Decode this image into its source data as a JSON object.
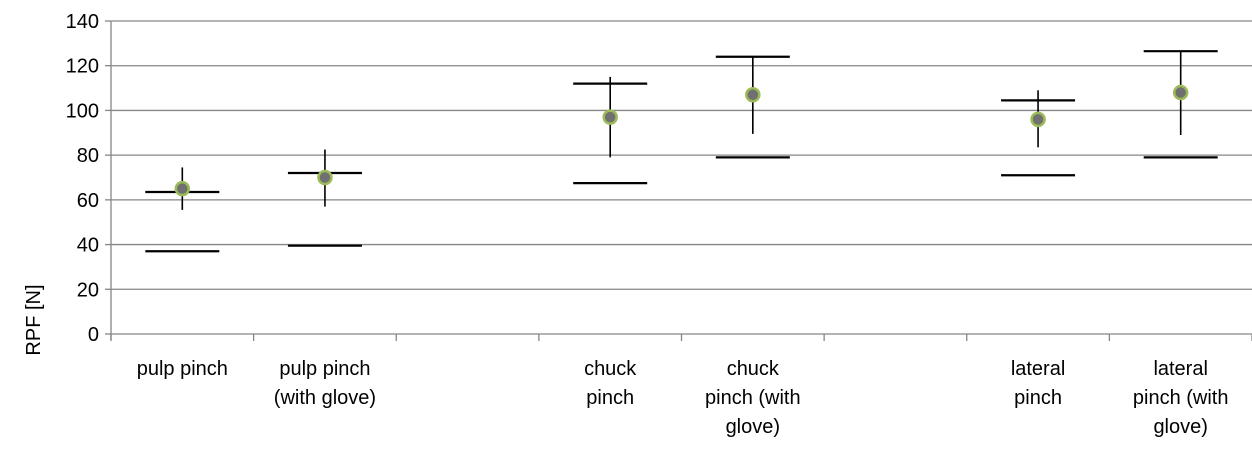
{
  "chart_data": {
    "type": "scatter",
    "title": "",
    "xlabel": "",
    "ylabel": "RPF [N]",
    "ylim": [
      0,
      140
    ],
    "y_ticks": [
      0,
      20,
      40,
      60,
      80,
      100,
      120,
      140
    ],
    "grid": true,
    "categories": [
      {
        "lines": [
          "pulp pinch"
        ]
      },
      {
        "lines": [
          "pulp pinch",
          "(with glove)"
        ]
      },
      {
        "lines": []
      },
      {
        "lines": [
          "chuck",
          "pinch"
        ]
      },
      {
        "lines": [
          "chuck",
          "pinch (with",
          "glove)"
        ]
      },
      {
        "lines": []
      },
      {
        "lines": [
          "lateral",
          "pinch"
        ]
      },
      {
        "lines": [
          "lateral",
          "pinch (with",
          "glove)"
        ]
      }
    ],
    "series": [
      {
        "points": [
          {
            "category": 0,
            "mean": 65,
            "err_low": 55.5,
            "err_high": 74.5,
            "bar_high": 63.5,
            "bar_low": 37
          },
          {
            "category": 1,
            "mean": 70,
            "err_low": 57,
            "err_high": 82.5,
            "bar_high": 72,
            "bar_low": 39.5
          },
          {
            "category": 3,
            "mean": 97,
            "err_low": 79,
            "err_high": 115,
            "bar_high": 112,
            "bar_low": 67.5
          },
          {
            "category": 4,
            "mean": 107,
            "err_low": 89.5,
            "err_high": 124,
            "bar_high": 124,
            "bar_low": 79
          },
          {
            "category": 6,
            "mean": 96,
            "err_low": 83.5,
            "err_high": 109,
            "bar_high": 104.5,
            "bar_low": 71
          },
          {
            "category": 7,
            "mean": 108,
            "err_low": 89,
            "err_high": 126.5,
            "bar_high": 126.5,
            "bar_low": 79
          }
        ],
        "marker_fill": "#707070",
        "marker_stroke": "#9BBB59"
      }
    ],
    "colors": {
      "grid": "#868686",
      "axis": "#868686",
      "whisker": "#000000"
    }
  }
}
